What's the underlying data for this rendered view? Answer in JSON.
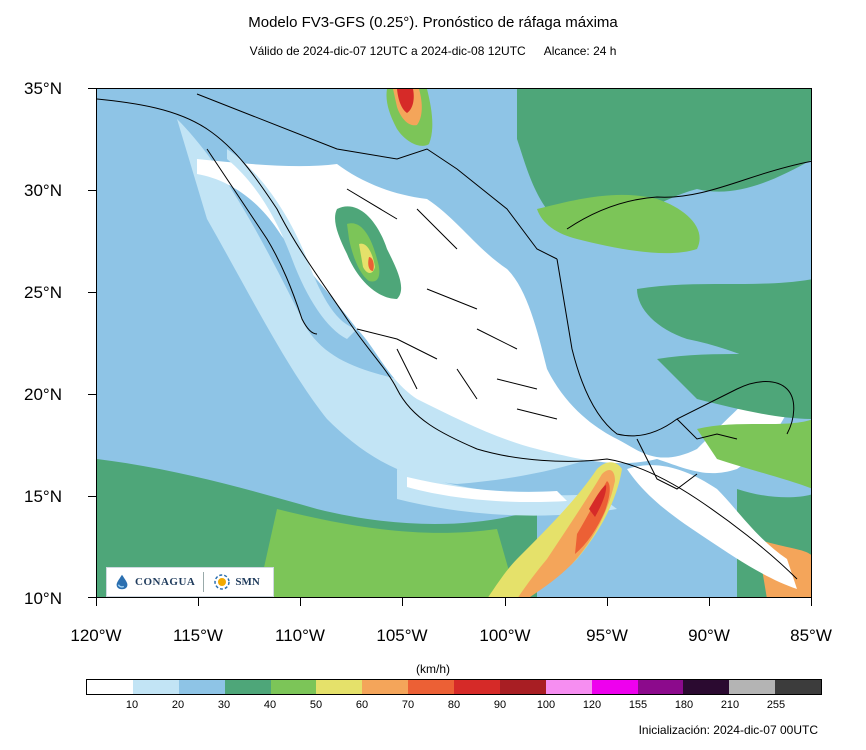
{
  "header": {
    "title": "Modelo FV3-GFS (0.25°). Pronóstico de ráfaga máxima",
    "valid": "Válido de 2024-dic-07 12UTC a 2024-dic-08 12UTC",
    "range": "Alcance: 24 h"
  },
  "axes": {
    "lat_labels": [
      "35°N",
      "30°N",
      "25°N",
      "20°N",
      "15°N",
      "10°N"
    ],
    "lon_labels": [
      "120°W",
      "115°W",
      "110°W",
      "105°W",
      "100°W",
      "95°W",
      "90°W",
      "85°W"
    ],
    "lat_range": [
      10,
      35
    ],
    "lon_range": [
      -120,
      -85
    ]
  },
  "colorbar": {
    "units": "(km/h)",
    "labels": [
      "10",
      "20",
      "30",
      "40",
      "50",
      "60",
      "70",
      "80",
      "90",
      "100",
      "120",
      "155",
      "180",
      "210",
      "255"
    ],
    "colors": [
      "#ffffff",
      "#c2e4f5",
      "#8ec4e6",
      "#4ea679",
      "#7cc558",
      "#e5e16a",
      "#f4a55a",
      "#ec6035",
      "#d62a28",
      "#a81e23",
      "#f68ef1",
      "#ee00ee",
      "#8c0a8c",
      "#2b0a30",
      "#b4b4b4",
      "#3c3c3c"
    ]
  },
  "footer": {
    "init": "Inicialización: 2024-dic-07 00UTC"
  },
  "logos": {
    "conagua": "CONAGUA",
    "smn": "SMN"
  }
}
